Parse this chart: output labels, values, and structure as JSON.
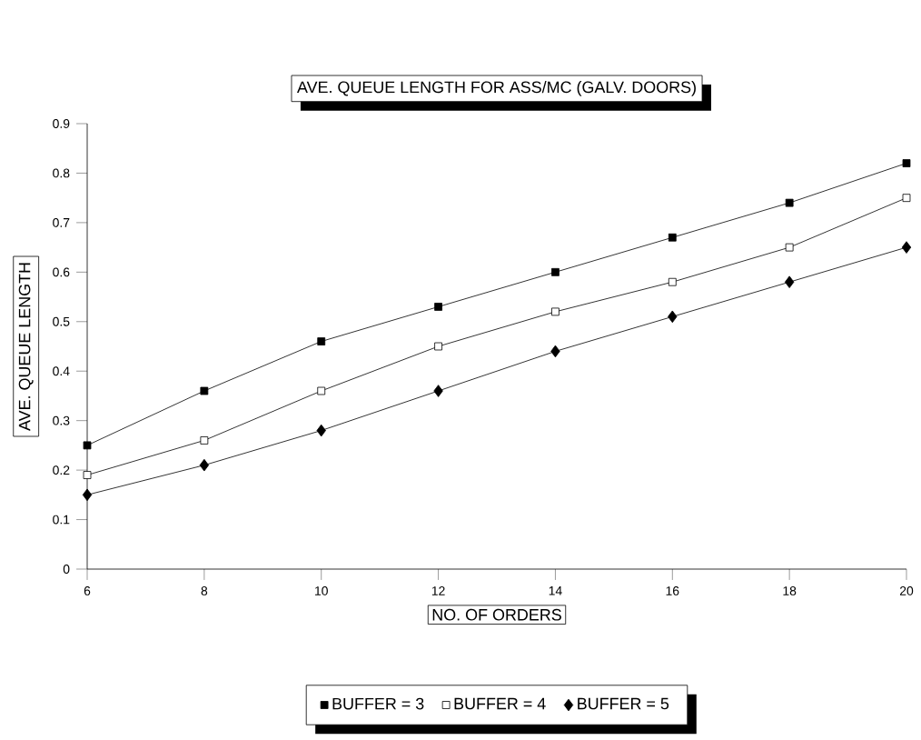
{
  "chart_data": {
    "type": "line",
    "title": "AVE. QUEUE LENGTH FOR ASS/MC (GALV. DOORS)",
    "xlabel": "NO. OF ORDERS",
    "ylabel": "AVE. QUEUE LENGTH",
    "x": [
      6,
      8,
      10,
      12,
      14,
      16,
      18,
      20
    ],
    "xlim": [
      6,
      20
    ],
    "xticks": [
      6,
      8,
      10,
      12,
      14,
      16,
      18,
      20
    ],
    "ylim": [
      0,
      0.9
    ],
    "yticks": [
      0,
      0.1,
      0.2,
      0.3,
      0.4,
      0.5,
      0.6,
      0.7,
      0.8,
      0.9
    ],
    "legend": "bottom",
    "grid": false,
    "line_style": "solid",
    "series": [
      {
        "name": "BUFFER = 3",
        "color": "#000000",
        "marker": "square",
        "values": [
          0.25,
          0.36,
          0.46,
          0.53,
          0.6,
          0.67,
          0.74,
          0.82
        ]
      },
      {
        "name": "BUFFER = 4",
        "color": "#000000",
        "marker": "square",
        "values": [
          0.19,
          0.26,
          0.36,
          0.45,
          0.52,
          0.58,
          0.65,
          0.75
        ]
      },
      {
        "name": "BUFFER = 5",
        "color": "#000000",
        "marker": "diamond",
        "values": [
          0.15,
          0.21,
          0.28,
          0.36,
          0.44,
          0.51,
          0.58,
          0.65
        ]
      }
    ]
  }
}
